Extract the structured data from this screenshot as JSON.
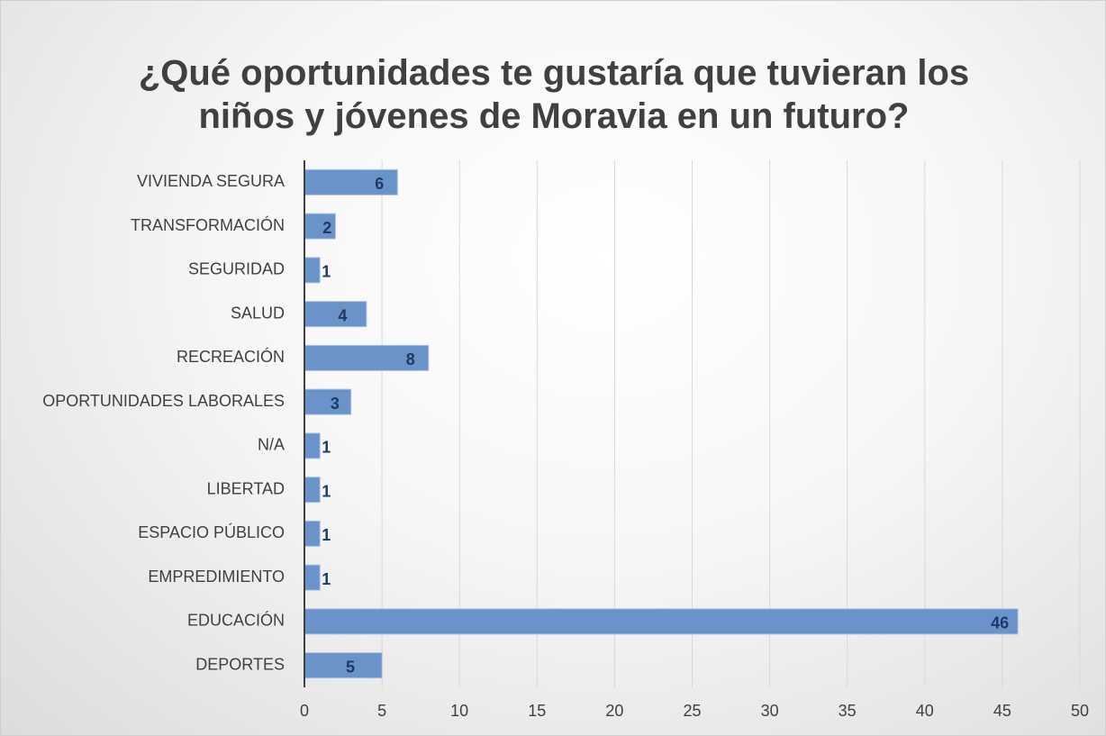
{
  "chart_data": {
    "type": "barh",
    "title": "¿Qué oportunidades te gustaría que tuvieran los niños y jóvenes de Moravia en un futuro?",
    "categories": [
      "VIVIENDA SEGURA",
      "TRANSFORMACIÓN",
      "SEGURIDAD",
      "SALUD",
      "RECREACIÓN",
      "OPORTUNIDADES LABORALES",
      "N/A",
      "LIBERTAD",
      "ESPACIO PÚBLICO",
      "EMPREDIMIENTO",
      "EDUCACIÓN",
      "DEPORTES"
    ],
    "values": [
      6,
      2,
      1,
      4,
      8,
      3,
      1,
      1,
      1,
      1,
      46,
      5
    ],
    "color": "#6a93c9",
    "xlim": [
      0,
      50
    ],
    "xticks": [
      0,
      5,
      10,
      15,
      20,
      25,
      30,
      35,
      40,
      45,
      50
    ],
    "grid": true
  }
}
